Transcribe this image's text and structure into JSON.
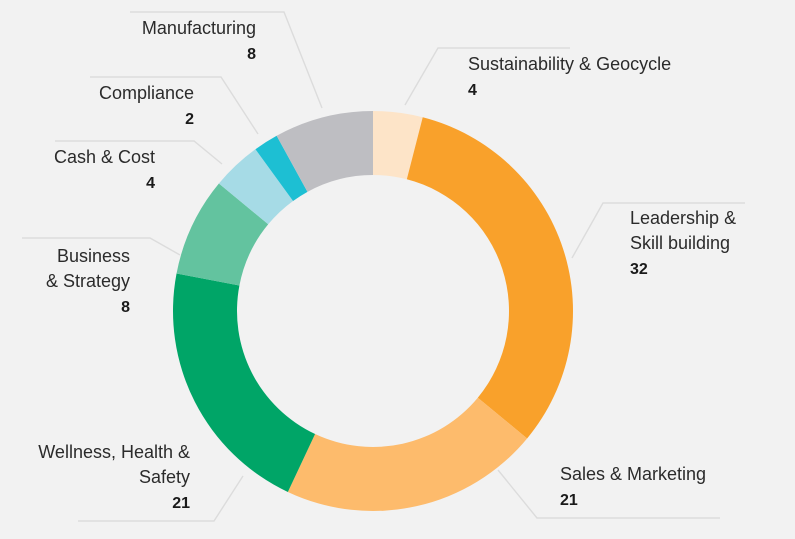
{
  "chart_data": {
    "type": "pie",
    "variant": "donut",
    "slices": [
      {
        "label_lines": [
          "Sustainability & Geocycle"
        ],
        "value": 4,
        "color": "#fde4c8"
      },
      {
        "label_lines": [
          "Leadership &",
          "Skill building"
        ],
        "value": 32,
        "color": "#f9a12b"
      },
      {
        "label_lines": [
          "Sales & Marketing"
        ],
        "value": 21,
        "color": "#fdbb6c"
      },
      {
        "label_lines": [
          "Wellness, Health &",
          "Safety"
        ],
        "value": 21,
        "color": "#00a567"
      },
      {
        "label_lines": [
          "Business",
          "& Strategy"
        ],
        "value": 8,
        "color": "#63c39f"
      },
      {
        "label_lines": [
          "Cash & Cost"
        ],
        "value": 4,
        "color": "#a6dbe6"
      },
      {
        "label_lines": [
          "Compliance"
        ],
        "value": 2,
        "color": "#1dbfd3"
      },
      {
        "label_lines": [
          "Manufacturing"
        ],
        "value": 8,
        "color": "#bebec2"
      }
    ],
    "legend": "none"
  }
}
